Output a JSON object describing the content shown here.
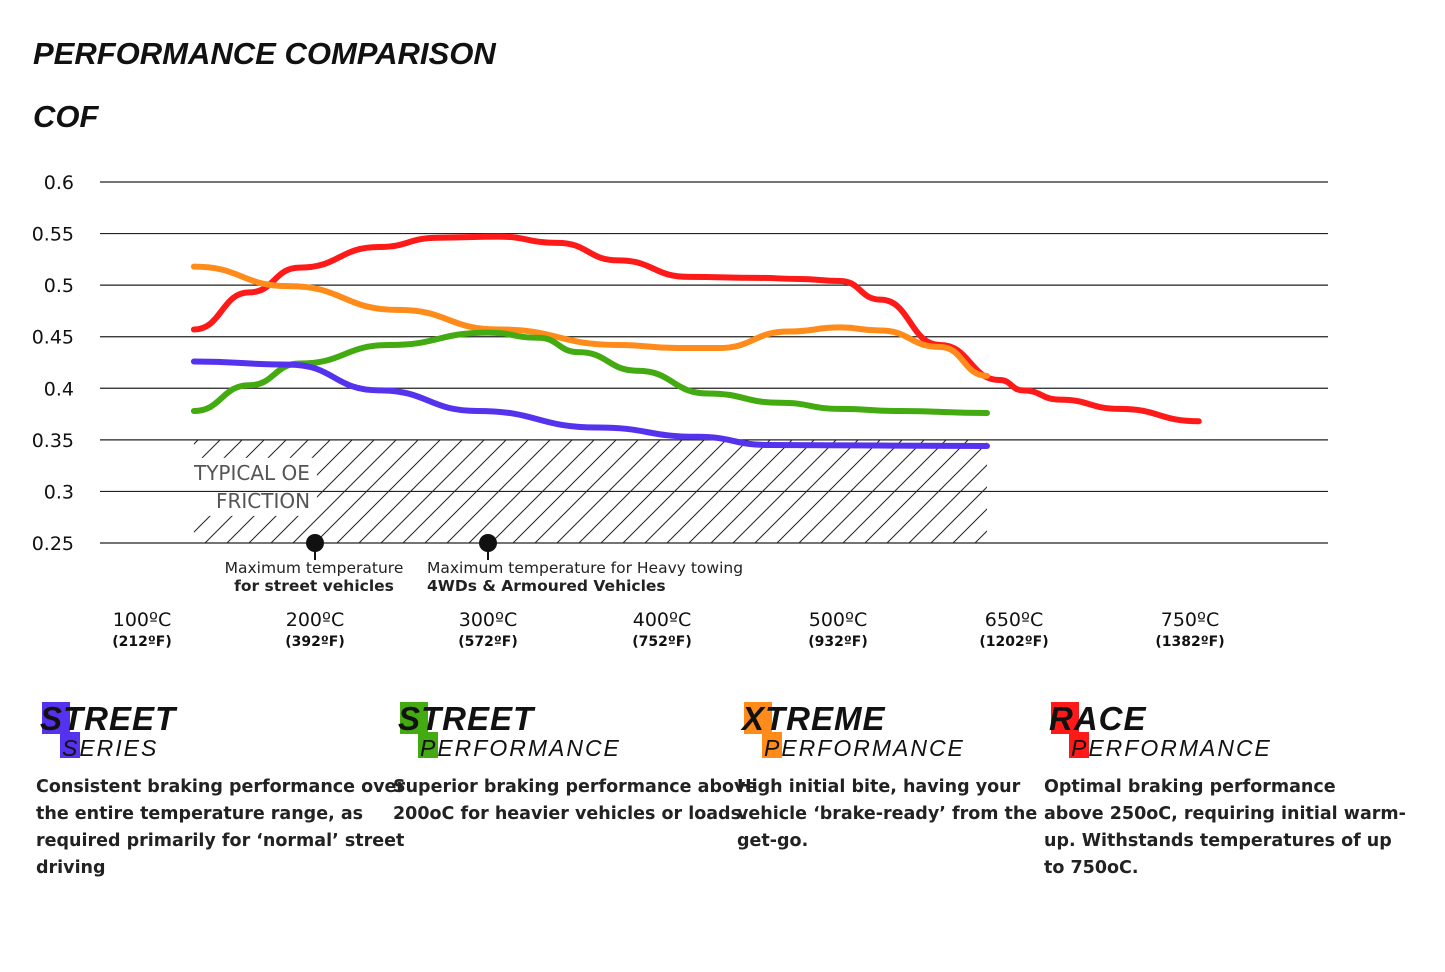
{
  "header": {
    "title": "PERFORMANCE COMPARISON",
    "subtitle": "COF"
  },
  "chart_data": {
    "type": "line",
    "ylabel": "COF",
    "ylim": [
      0.25,
      0.6
    ],
    "yticks": [
      "0.6",
      "0.55",
      "0.5",
      "0.45",
      "0.4",
      "0.35",
      "0.3",
      "0.25"
    ],
    "grid": true,
    "xticks": [
      {
        "value": 100,
        "label": "100ºC",
        "sub": "(212ºF)"
      },
      {
        "value": 200,
        "label": "200ºC",
        "sub": "(392ºF)"
      },
      {
        "value": 300,
        "label": "300ºC",
        "sub": "(572ºF)"
      },
      {
        "value": 400,
        "label": "400ºC",
        "sub": "(752ºF)"
      },
      {
        "value": 500,
        "label": "500ºC",
        "sub": "(932ºF)"
      },
      {
        "value": 650,
        "label": "650ºC",
        "sub": "(1202ºF)"
      },
      {
        "value": 750,
        "label": "750ºC",
        "sub": "(1382ºF)"
      }
    ],
    "series": [
      {
        "color": "#ff1a1a",
        "x": [
          130,
          162,
          191,
          237,
          271,
          306,
          340,
          375,
          415,
          455,
          478,
          502,
          536,
          587,
          638,
          655,
          676,
          710,
          755
        ],
        "y": [
          0.457,
          0.493,
          0.517,
          0.537,
          0.546,
          0.547,
          0.541,
          0.524,
          0.508,
          0.507,
          0.506,
          0.504,
          0.486,
          0.442,
          0.408,
          0.398,
          0.389,
          0.38,
          0.368
        ]
      },
      {
        "color": "#ff8c1a",
        "x": [
          130,
          185,
          248,
          306,
          375,
          409,
          432,
          472,
          502,
          536,
          587,
          627
        ],
        "y": [
          0.518,
          0.499,
          0.476,
          0.457,
          0.442,
          0.439,
          0.439,
          0.455,
          0.459,
          0.456,
          0.44,
          0.412
        ]
      },
      {
        "color": "#44aa11",
        "x": [
          130,
          162,
          191,
          243,
          300,
          329,
          352,
          386,
          426,
          467,
          502,
          553,
          627
        ],
        "y": [
          0.378,
          0.403,
          0.424,
          0.442,
          0.454,
          0.449,
          0.435,
          0.417,
          0.395,
          0.386,
          0.38,
          0.378,
          0.376
        ]
      },
      {
        "color": "#5533ee",
        "x": [
          130,
          185,
          237,
          294,
          363,
          420,
          461,
          627
        ],
        "y": [
          0.426,
          0.423,
          0.398,
          0.378,
          0.362,
          0.353,
          0.345,
          0.344
        ]
      }
    ],
    "region": {
      "label_line1": "TYPICAL OE",
      "label_line2": "FRICTION",
      "x": [
        130,
        627
      ],
      "y": [
        0.25,
        0.35
      ]
    },
    "annotations": [
      {
        "x": 200,
        "line1": "Maximum temperature",
        "line2": "for street vehicles"
      },
      {
        "x": 300,
        "line1": "Maximum temperature for Heavy towing",
        "line2": "4WDs & Armoured Vehicles"
      }
    ]
  },
  "products": [
    {
      "l1": "STREET",
      "l2": "SERIES",
      "color": "#5533ee",
      "desc": [
        "Consistent braking performance over",
        "the entire temperature range, as",
        "required primarily for ‘normal’ street",
        "driving"
      ]
    },
    {
      "l1": "STREET",
      "l2": "PERFORMANCE",
      "color": "#44aa11",
      "desc": [
        "Superior braking performance above",
        "200oC for heavier vehicles or loads."
      ]
    },
    {
      "l1": "XTREME",
      "l2": "PERFORMANCE",
      "color": "#ff8c1a",
      "desc": [
        "High initial bite, having your",
        "vehicle ‘brake-ready’ from the",
        "get-go."
      ]
    },
    {
      "l1": "RACE",
      "l2": "PERFORMANCE",
      "color": "#ff1a1a",
      "desc": [
        "Optimal braking performance",
        "above 250oC, requiring initial warm-",
        "up. Withstands temperatures of up",
        "to 750oC."
      ]
    }
  ]
}
